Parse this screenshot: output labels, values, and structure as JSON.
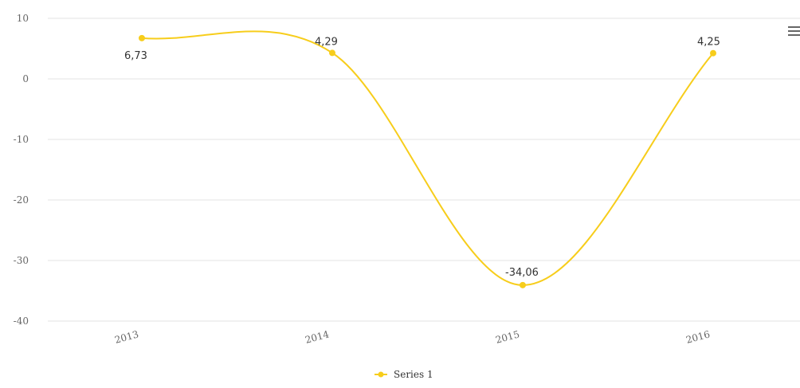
{
  "chart_data": {
    "type": "line",
    "categories": [
      "2013",
      "2014",
      "2015",
      "2016"
    ],
    "series": [
      {
        "name": "Series 1",
        "values": [
          6.73,
          4.29,
          -34.06,
          4.25
        ],
        "labels": [
          "6,73",
          "4,29",
          "-34,06",
          "4,25"
        ],
        "color": "#f7cd1b"
      }
    ],
    "ylim": [
      -40,
      10
    ],
    "yticks": [
      10,
      0,
      -10,
      -20,
      -30,
      -40
    ],
    "grid": true,
    "smooth": true,
    "legend_position": "bottom-center"
  },
  "icons": {
    "menu": "hamburger-menu-icon"
  }
}
